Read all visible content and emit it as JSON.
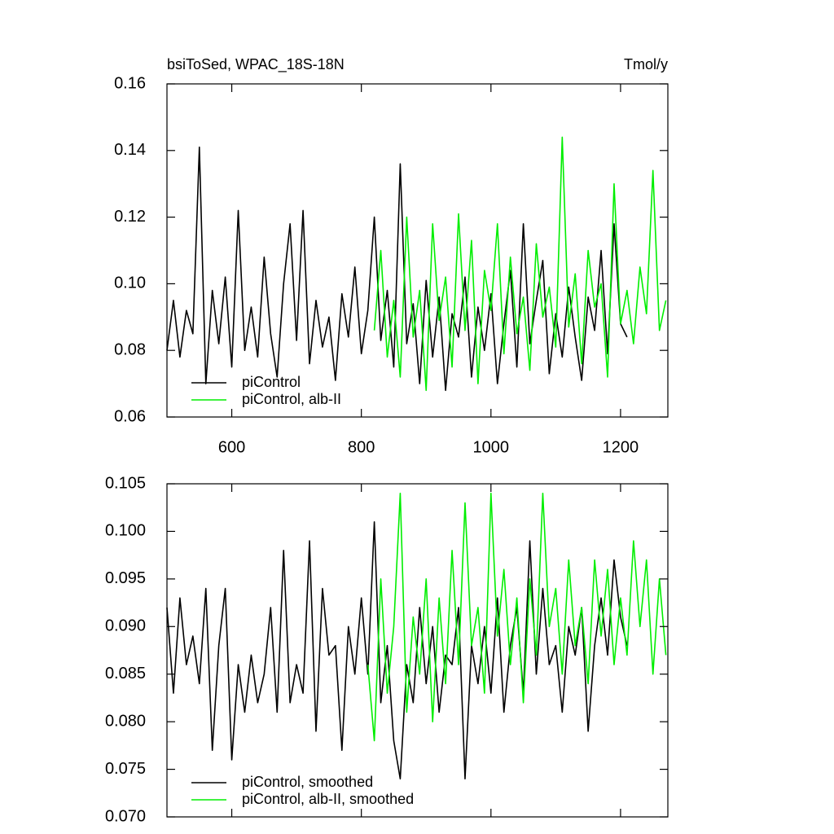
{
  "chart_data": [
    {
      "type": "line",
      "title": "bsiToSed, WPAC_18S-18N",
      "units": "Tmol/y",
      "xlim": [
        500,
        1273
      ],
      "xticks": [
        600,
        800,
        1000,
        1200
      ],
      "ylim": [
        0.06,
        0.16
      ],
      "yticks": [
        0.06,
        0.08,
        {
          "value": 0.1,
          "label": "0.10"
        },
        0.12,
        0.14,
        0.16
      ],
      "legend": "lower left",
      "series": [
        {
          "name": "piControl",
          "color": "#000000",
          "x": [
            500,
            510,
            520,
            530,
            540,
            550,
            560,
            570,
            580,
            590,
            600,
            610,
            620,
            630,
            640,
            650,
            660,
            670,
            680,
            690,
            700,
            710,
            720,
            730,
            740,
            750,
            760,
            770,
            780,
            790,
            800,
            810,
            820,
            830,
            840,
            850,
            860,
            870,
            880,
            890,
            900,
            910,
            920,
            930,
            940,
            950,
            960,
            970,
            980,
            990,
            1000,
            1010,
            1020,
            1030,
            1040,
            1050,
            1060,
            1070,
            1080,
            1090,
            1100,
            1110,
            1120,
            1130,
            1140,
            1150,
            1160,
            1170,
            1180,
            1190,
            1200,
            1210
          ],
          "values": [
            0.08,
            0.095,
            0.078,
            0.092,
            0.085,
            0.141,
            0.07,
            0.098,
            0.082,
            0.102,
            0.075,
            0.122,
            0.08,
            0.093,
            0.078,
            0.108,
            0.085,
            0.072,
            0.1,
            0.118,
            0.083,
            0.122,
            0.076,
            0.095,
            0.081,
            0.09,
            0.071,
            0.097,
            0.084,
            0.105,
            0.079,
            0.092,
            0.12,
            0.083,
            0.098,
            0.075,
            0.136,
            0.082,
            0.094,
            0.07,
            0.101,
            0.078,
            0.096,
            0.068,
            0.091,
            0.084,
            0.102,
            0.072,
            0.093,
            0.08,
            0.097,
            0.07,
            0.088,
            0.104,
            0.075,
            0.118,
            0.082,
            0.095,
            0.107,
            0.073,
            0.091,
            0.078,
            0.099,
            0.084,
            0.071,
            0.096,
            0.086,
            0.11,
            0.079,
            0.118,
            0.088,
            0.084
          ]
        },
        {
          "name": "piControl, alb-II",
          "color": "#00ee00",
          "x": [
            820,
            830,
            840,
            850,
            860,
            870,
            880,
            890,
            900,
            910,
            920,
            930,
            940,
            950,
            960,
            970,
            980,
            990,
            1000,
            1010,
            1020,
            1030,
            1040,
            1050,
            1060,
            1070,
            1080,
            1090,
            1100,
            1110,
            1120,
            1130,
            1140,
            1150,
            1160,
            1170,
            1180,
            1190,
            1200,
            1210,
            1220,
            1230,
            1240,
            1250,
            1260,
            1270
          ],
          "values": [
            0.086,
            0.11,
            0.078,
            0.095,
            0.072,
            0.12,
            0.084,
            0.098,
            0.068,
            0.118,
            0.089,
            0.102,
            0.075,
            0.121,
            0.086,
            0.113,
            0.07,
            0.104,
            0.092,
            0.118,
            0.079,
            0.108,
            0.085,
            0.096,
            0.074,
            0.112,
            0.09,
            0.099,
            0.081,
            0.144,
            0.087,
            0.103,
            0.076,
            0.11,
            0.093,
            0.1,
            0.072,
            0.13,
            0.088,
            0.098,
            0.082,
            0.105,
            0.091,
            0.134,
            0.086,
            0.095
          ]
        }
      ]
    },
    {
      "type": "line",
      "xlim": [
        500,
        1273
      ],
      "xticks": [
        600,
        800,
        1000,
        1200
      ],
      "ylim": [
        0.07,
        0.105
      ],
      "yticks": [
        {
          "value": 0.07,
          "label": "0.070"
        },
        0.075,
        {
          "value": 0.08,
          "label": "0.080"
        },
        0.085,
        {
          "value": 0.09,
          "label": "0.090"
        },
        0.095,
        {
          "value": 0.1,
          "label": "0.100"
        },
        0.105
      ],
      "legend": "lower left",
      "series": [
        {
          "name": "piControl, smoothed",
          "color": "#000000",
          "x": [
            500,
            510,
            520,
            530,
            540,
            550,
            560,
            570,
            580,
            590,
            600,
            610,
            620,
            630,
            640,
            650,
            660,
            670,
            680,
            690,
            700,
            710,
            720,
            730,
            740,
            750,
            760,
            770,
            780,
            790,
            800,
            810,
            820,
            830,
            840,
            850,
            860,
            870,
            880,
            890,
            900,
            910,
            920,
            930,
            940,
            950,
            960,
            970,
            980,
            990,
            1000,
            1010,
            1020,
            1030,
            1040,
            1050,
            1060,
            1070,
            1080,
            1090,
            1100,
            1110,
            1120,
            1130,
            1140,
            1150,
            1160,
            1170,
            1180,
            1190,
            1200,
            1210
          ],
          "values": [
            0.092,
            0.083,
            0.093,
            0.086,
            0.089,
            0.084,
            0.094,
            0.077,
            0.088,
            0.094,
            0.076,
            0.086,
            0.081,
            0.087,
            0.082,
            0.085,
            0.092,
            0.081,
            0.098,
            0.082,
            0.086,
            0.083,
            0.099,
            0.079,
            0.094,
            0.087,
            0.088,
            0.077,
            0.09,
            0.085,
            0.093,
            0.085,
            0.101,
            0.082,
            0.088,
            0.078,
            0.074,
            0.086,
            0.082,
            0.092,
            0.084,
            0.09,
            0.081,
            0.087,
            0.086,
            0.092,
            0.074,
            0.088,
            0.084,
            0.09,
            0.083,
            0.093,
            0.081,
            0.088,
            0.092,
            0.083,
            0.099,
            0.085,
            0.094,
            0.086,
            0.088,
            0.081,
            0.09,
            0.087,
            0.092,
            0.079,
            0.088,
            0.093,
            0.087,
            0.097,
            0.091,
            0.088
          ]
        },
        {
          "name": "piControl, alb-II, smoothed",
          "color": "#00ee00",
          "x": [
            810,
            820,
            830,
            840,
            850,
            860,
            870,
            880,
            890,
            900,
            910,
            920,
            930,
            940,
            950,
            960,
            970,
            980,
            990,
            1000,
            1010,
            1020,
            1030,
            1040,
            1050,
            1060,
            1070,
            1080,
            1090,
            1100,
            1110,
            1120,
            1130,
            1140,
            1150,
            1160,
            1170,
            1180,
            1190,
            1200,
            1210,
            1220,
            1230,
            1240,
            1250,
            1260,
            1270
          ],
          "values": [
            0.086,
            0.078,
            0.095,
            0.083,
            0.09,
            0.104,
            0.081,
            0.091,
            0.085,
            0.095,
            0.08,
            0.093,
            0.084,
            0.098,
            0.086,
            0.103,
            0.088,
            0.092,
            0.083,
            0.104,
            0.089,
            0.096,
            0.086,
            0.093,
            0.082,
            0.095,
            0.087,
            0.104,
            0.09,
            0.094,
            0.085,
            0.097,
            0.088,
            0.092,
            0.084,
            0.097,
            0.089,
            0.096,
            0.086,
            0.093,
            0.087,
            0.099,
            0.09,
            0.097,
            0.085,
            0.095,
            0.087
          ]
        }
      ]
    }
  ]
}
